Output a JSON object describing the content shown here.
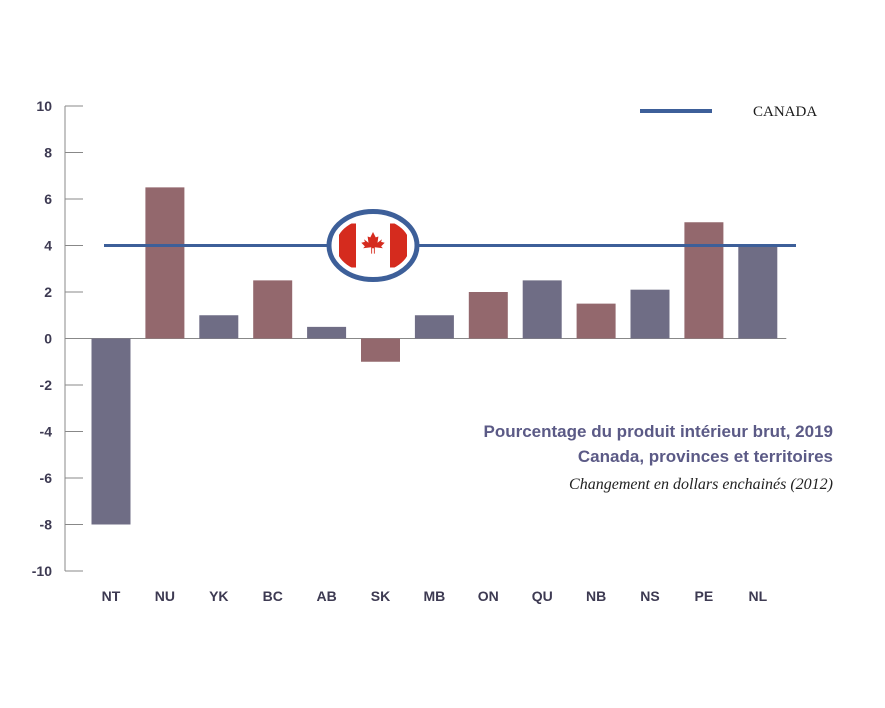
{
  "chart_data": {
    "type": "bar",
    "title": [
      "Pourcentage du produit intérieur brut, 2019",
      "Canada, provinces et territoires"
    ],
    "subtitle": "Changement en dollars enchainés (2012)",
    "categories": [
      "NT",
      "NU",
      "YK",
      "BC",
      "AB",
      "SK",
      "MB",
      "ON",
      "QU",
      "NB",
      "NS",
      "PE",
      "NL"
    ],
    "values": [
      -8,
      6.5,
      1,
      2.5,
      0.5,
      -1,
      1,
      2,
      2.5,
      1.5,
      2.1,
      5,
      4
    ],
    "bar_colors": [
      "#6f6d85",
      "#93686d",
      "#6f6d85",
      "#93686d",
      "#6f6d85",
      "#93686d",
      "#6f6d85",
      "#93686d",
      "#6f6d85",
      "#93686d",
      "#6f6d85",
      "#93686d",
      "#6f6d85"
    ],
    "ylim": [
      -10,
      10
    ],
    "yticks": [
      10,
      8,
      6,
      4,
      2,
      0,
      -2,
      -4,
      -6,
      -8,
      -10
    ],
    "reference_line": {
      "name": "CANADA",
      "value": 4,
      "color": "#3d5f99"
    },
    "legend": {
      "position": "top-right",
      "entries": [
        "CANADA"
      ]
    },
    "grid": false,
    "xlabel": "",
    "ylabel": "",
    "colors": {
      "axis": "#888888",
      "tick_text": "#3d3a52",
      "title": "#5b5a86",
      "flag_red": "#d52b1e"
    },
    "icons": [
      "canada-flag-icon"
    ]
  }
}
